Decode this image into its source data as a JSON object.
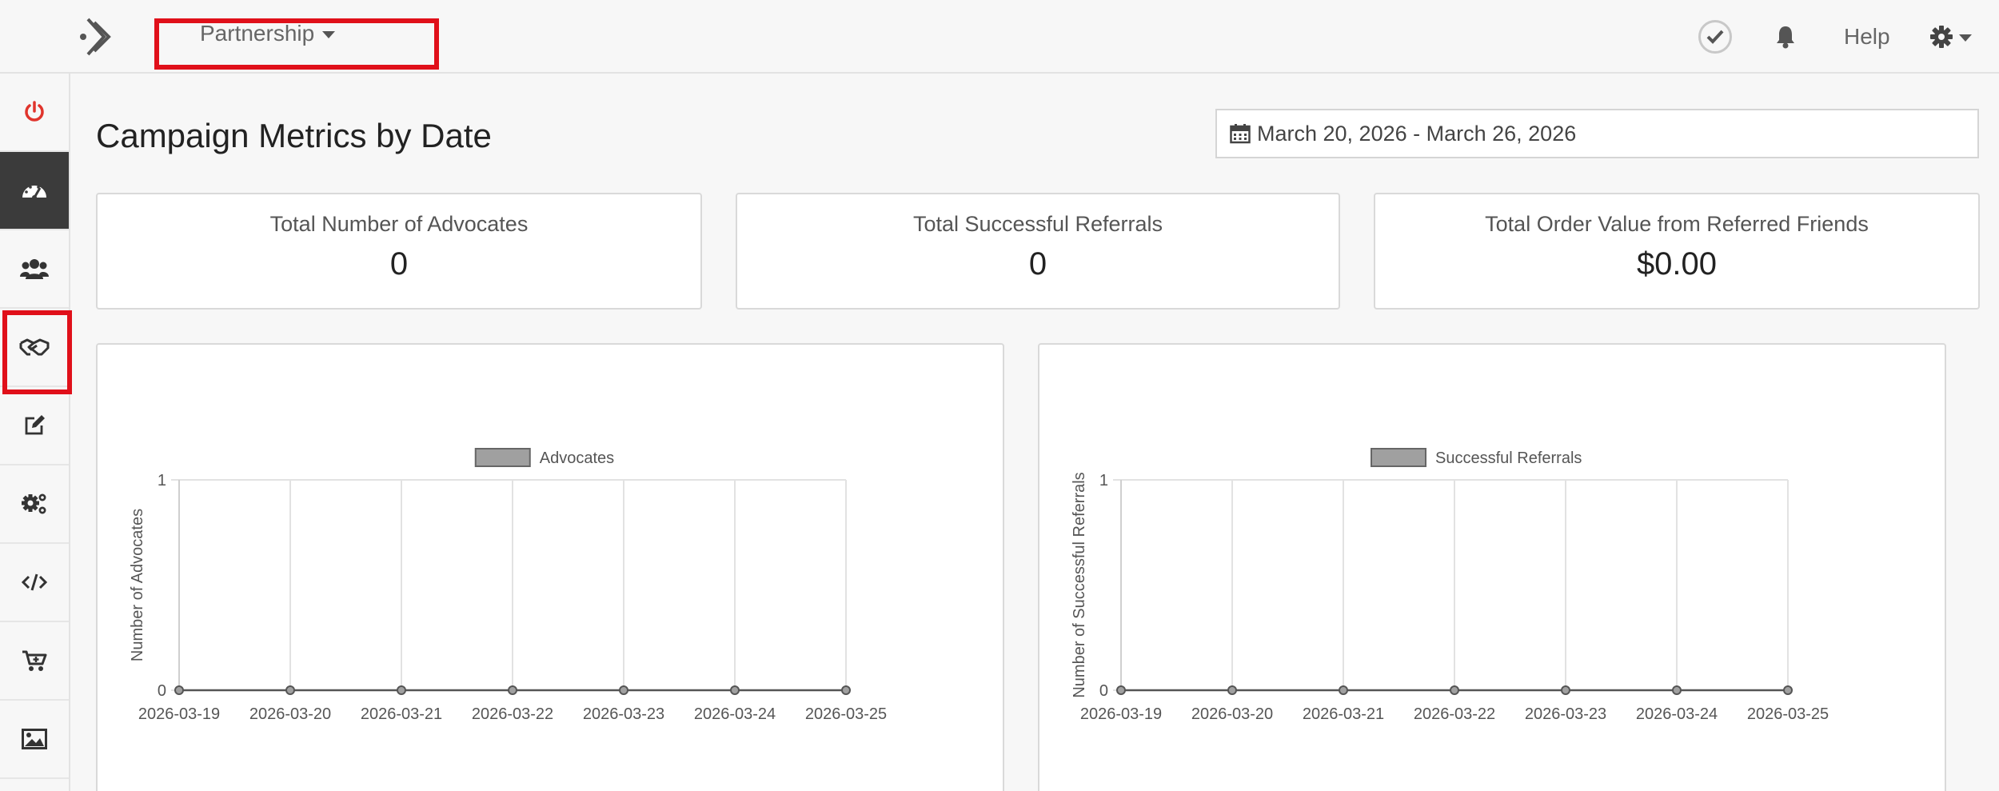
{
  "topbar": {
    "brand_dropdown_label": "Partnership",
    "help_label": "Help"
  },
  "sidebar": {
    "items": [
      {
        "icon": "power-icon",
        "active": false
      },
      {
        "icon": "dashboard-icon",
        "active": true
      },
      {
        "icon": "users-icon",
        "active": false
      },
      {
        "icon": "handshake-icon",
        "active": false
      },
      {
        "icon": "edit-icon",
        "active": false
      },
      {
        "icon": "gears-icon",
        "active": false
      },
      {
        "icon": "code-icon",
        "active": false
      },
      {
        "icon": "cart-icon",
        "active": false
      },
      {
        "icon": "image-icon",
        "active": false
      }
    ]
  },
  "page": {
    "title": "Campaign Metrics by Date",
    "date_range": "March 20, 2026 - March 26, 2026"
  },
  "stats": [
    {
      "label": "Total Number of Advocates",
      "value": "0"
    },
    {
      "label": "Total Successful Referrals",
      "value": "0"
    },
    {
      "label": "Total Order Value from Referred Friends",
      "value": "$0.00"
    }
  ],
  "colors": {
    "accent_red": "#e0101a",
    "power_red": "#e0342c",
    "sidebar_active": "#3b3b3b",
    "legend_fill": "#a0a0a0"
  },
  "chart_data": [
    {
      "type": "line",
      "legend": "Advocates",
      "ylabel": "Number of Advocates",
      "xlabel": "",
      "x": [
        "2026-03-19",
        "2026-03-20",
        "2026-03-21",
        "2026-03-22",
        "2026-03-23",
        "2026-03-24",
        "2026-03-25"
      ],
      "series": [
        {
          "name": "Advocates",
          "values": [
            0,
            0,
            0,
            0,
            0,
            0,
            0
          ]
        }
      ],
      "ylim": [
        0,
        1
      ],
      "yticks": [
        "0",
        "1"
      ],
      "grid": true,
      "legend_position": "top-center"
    },
    {
      "type": "line",
      "legend": "Successful Referrals",
      "ylabel": "Number of Successful Referrals",
      "xlabel": "",
      "x": [
        "2026-03-19",
        "2026-03-20",
        "2026-03-21",
        "2026-03-22",
        "2026-03-23",
        "2026-03-24",
        "2026-03-25"
      ],
      "series": [
        {
          "name": "Successful Referrals",
          "values": [
            0,
            0,
            0,
            0,
            0,
            0,
            0
          ]
        }
      ],
      "ylim": [
        0,
        1
      ],
      "yticks": [
        "0",
        "1"
      ],
      "grid": true,
      "legend_position": "top-center"
    }
  ]
}
